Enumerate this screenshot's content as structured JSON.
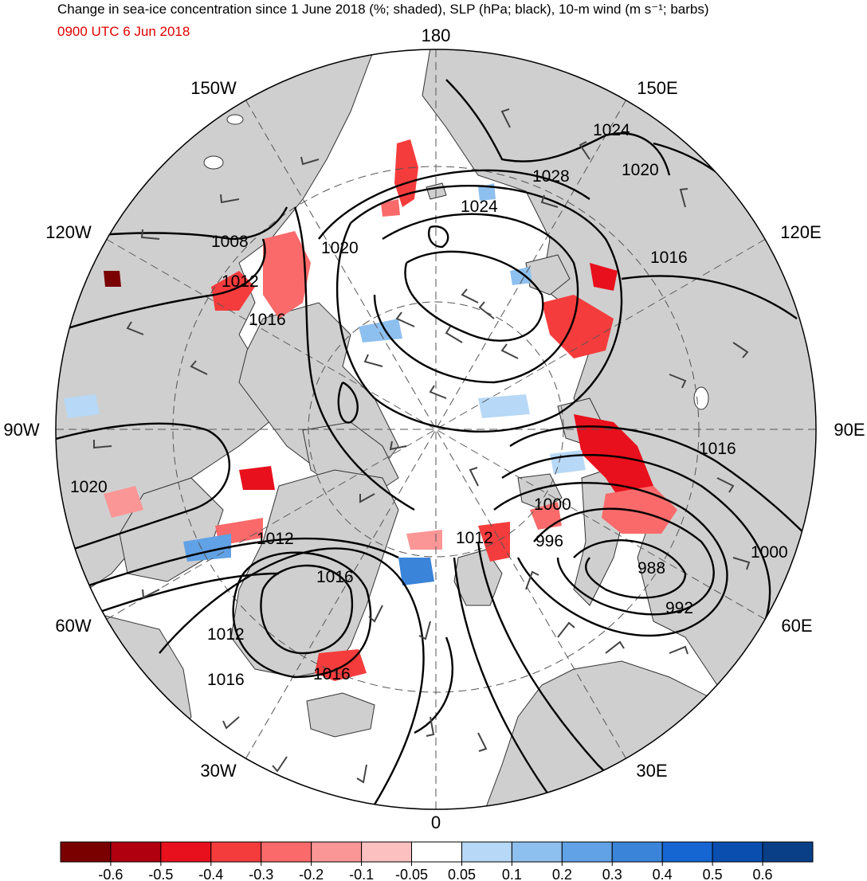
{
  "title": "Change in sea-ice concentration since 1 June 2018 (%; shaded), SLP (hPa; black), 10-m wind (m s⁻¹; barbs)",
  "valid_time": "0900 UTC 6 Jun 2018",
  "longitude_labels": [
    {
      "text": "180",
      "lon": 180
    },
    {
      "text": "150E",
      "lon": 150
    },
    {
      "text": "120E",
      "lon": 120
    },
    {
      "text": "90E",
      "lon": 90
    },
    {
      "text": "60E",
      "lon": 60
    },
    {
      "text": "30E",
      "lon": 30
    },
    {
      "text": "0",
      "lon": 0
    },
    {
      "text": "30W",
      "lon": -30
    },
    {
      "text": "60W",
      "lon": -60
    },
    {
      "text": "90W",
      "lon": -90
    },
    {
      "text": "120W",
      "lon": -120
    },
    {
      "text": "150W",
      "lon": -150
    }
  ],
  "slp_contour_labels": [
    "1024",
    "1028",
    "1020",
    "1024",
    "1020",
    "1016",
    "1008",
    "1012",
    "1016",
    "1020",
    "1016",
    "1000",
    "996",
    "1012",
    "988",
    "1000",
    "992",
    "1012",
    "1016",
    "1012",
    "1016",
    "1016"
  ],
  "colorbar": {
    "ticks": [
      "-0.6",
      "-0.5",
      "-0.4",
      "-0.3",
      "-0.2",
      "-0.1",
      "-0.05",
      "0.05",
      "0.1",
      "0.2",
      "0.3",
      "0.4",
      "0.5",
      "0.6"
    ],
    "colors": [
      "#7a0000",
      "#b00010",
      "#e8101c",
      "#f53c3c",
      "#fa6a6a",
      "#fb9696",
      "#fcc0c0",
      "#ffffff",
      "#b7d8f6",
      "#8ec0ef",
      "#61a1e5",
      "#3a84d9",
      "#1566d2",
      "#0a4fb0",
      "#083f86"
    ]
  },
  "map": {
    "projection": "north polar stereographic",
    "land_color": "#cfcfcf",
    "ocean_color": "#ffffff",
    "contour_color": "#000000",
    "barb_color": "#444444"
  }
}
